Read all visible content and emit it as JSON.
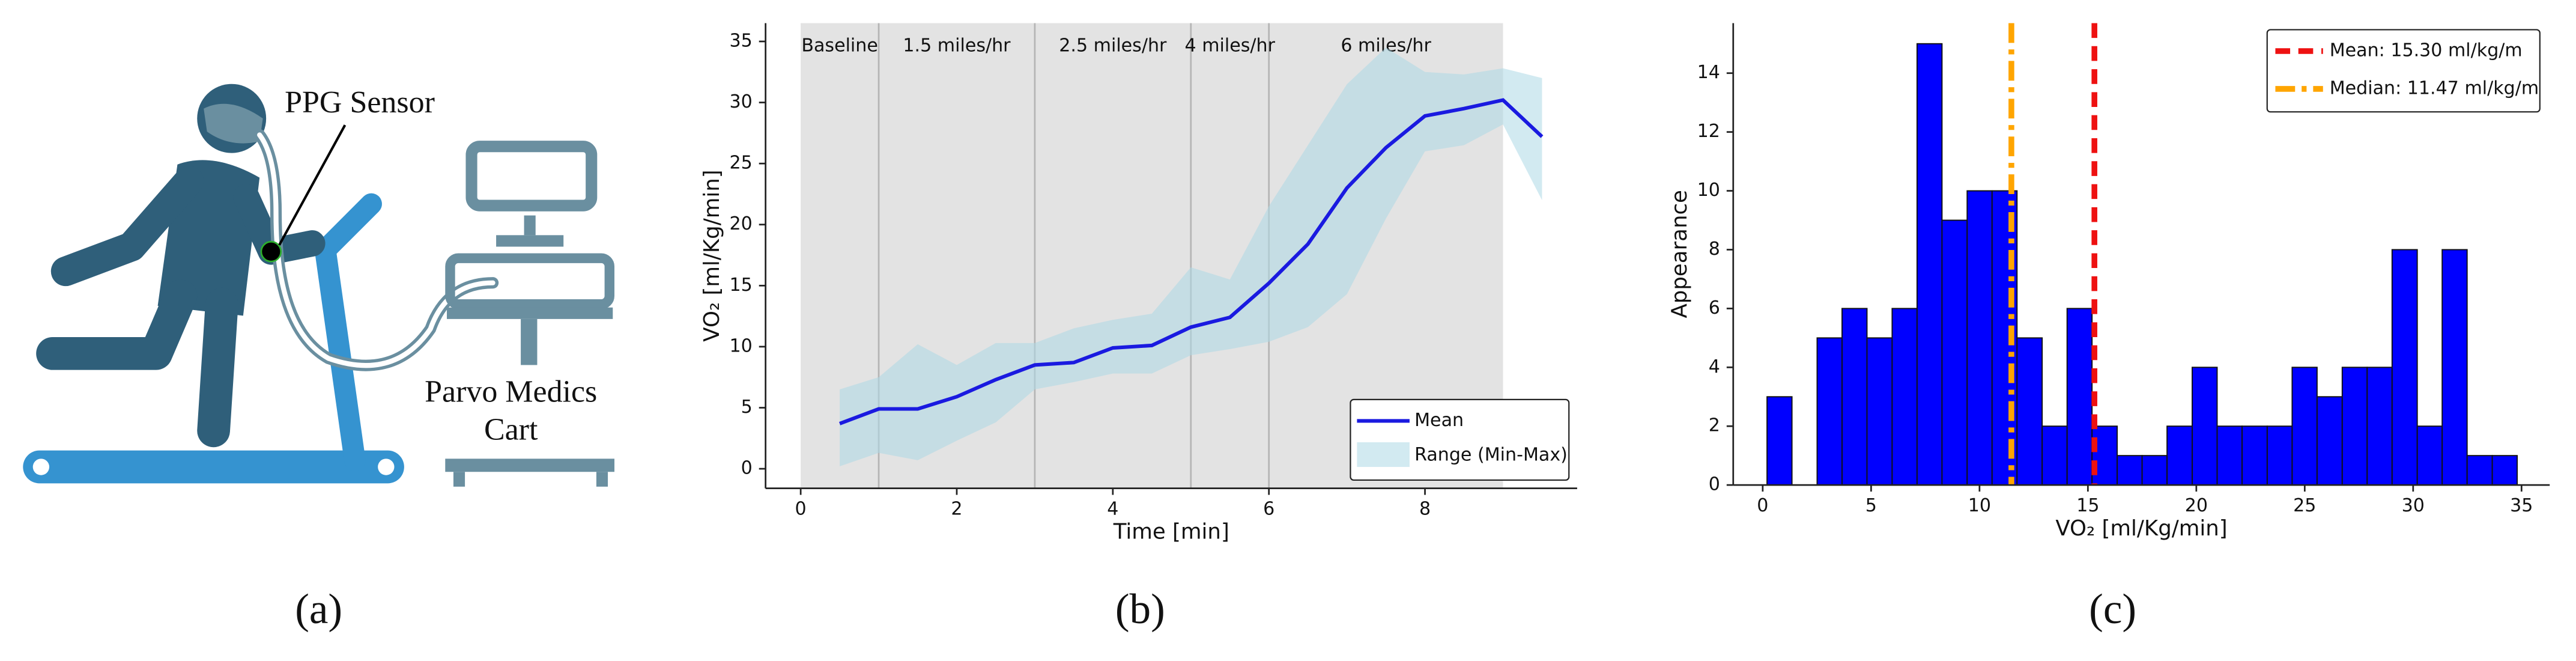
{
  "illustration": {
    "sensor_label": "PPG Sensor",
    "cart_label": [
      "Parvo Medics",
      "Cart"
    ]
  },
  "captions": [
    "(a)",
    "(b)",
    "(c)"
  ],
  "chart_data": [
    {
      "type": "line",
      "x_label": "Time [min]",
      "y_label": "VO₂ [ml/Kg/min]",
      "xlim": [
        -0.45,
        9.95
      ],
      "xticks": [
        0,
        2,
        4,
        6,
        8
      ],
      "ylim": [
        -1.6,
        36.5
      ],
      "yticks": [
        0,
        5,
        10,
        15,
        20,
        25,
        30,
        35
      ],
      "x": [
        0.5,
        1,
        1.5,
        2,
        2.5,
        3,
        3.5,
        4,
        4.5,
        5,
        5.5,
        6,
        6.5,
        7,
        7.5,
        8,
        8.5,
        9,
        9.5
      ],
      "series": [
        {
          "name": "Mean",
          "color": "#1a1ae0",
          "values": [
            3.7,
            4.9,
            4.9,
            5.9,
            7.3,
            8.5,
            8.7,
            9.9,
            10.1,
            11.6,
            12.4,
            15.2,
            18.4,
            23,
            26.3,
            28.9,
            29.5,
            30.2,
            27.2
          ]
        }
      ],
      "bands": [
        {
          "name": "Range (Min-Max)",
          "color": "#add8e6",
          "lower": [
            0.2,
            1.3,
            0.7,
            2.3,
            3.8,
            6.5,
            7.1,
            7.8,
            7.8,
            9.3,
            9.8,
            10.4,
            11.6,
            14.3,
            20.5,
            26,
            26.5,
            28.2,
            22
          ],
          "upper": [
            6.5,
            7.5,
            10.2,
            8.5,
            10.3,
            10.3,
            11.5,
            12.2,
            12.7,
            16.5,
            15.5,
            21.5,
            26.5,
            31.5,
            34.5,
            32.5,
            32.3,
            32.8,
            32
          ]
        }
      ],
      "phases": {
        "bounds": [
          0,
          1,
          3,
          5,
          6,
          9
        ],
        "labels": [
          "Baseline",
          "1.5 miles/hr",
          "2.5 miles/hr",
          "4 miles/hr",
          "6 miles/hr"
        ],
        "color": "#e3e3e3"
      },
      "legend": "lower right"
    },
    {
      "type": "histogram",
      "x_label": "VO₂ [ml/Kg/min]",
      "y_label": "Appearance",
      "xlim": [
        -1.36,
        36.3
      ],
      "xticks": [
        0,
        5,
        10,
        15,
        20,
        25,
        30,
        35
      ],
      "ylim": [
        0,
        15.7
      ],
      "yticks": [
        0,
        2,
        4,
        6,
        8,
        10,
        12,
        14
      ],
      "color": "#0000ff",
      "bins": [
        0.2,
        1.35,
        2.51,
        3.66,
        4.81,
        5.97,
        7.12,
        8.27,
        9.43,
        10.58,
        11.73,
        12.89,
        14.04,
        15.19,
        16.35,
        17.5,
        18.65,
        19.81,
        20.96,
        22.11,
        23.27,
        24.42,
        25.57,
        26.73,
        27.88,
        29.03,
        30.19,
        31.34,
        32.49,
        33.65,
        34.8
      ],
      "counts": [
        3,
        0,
        5,
        6,
        5,
        6,
        15,
        9,
        10,
        10,
        5,
        2,
        6,
        2,
        1,
        1,
        2,
        4,
        2,
        2,
        2,
        4,
        3,
        4,
        4,
        8,
        2,
        8,
        1,
        1
      ],
      "vlines": [
        {
          "name": "Mean: 15.30 ml/kg/m",
          "value": 15.3,
          "color": "#ee1111",
          "style": "dashed"
        },
        {
          "name": "Median: 11.47 ml/kg/m",
          "value": 11.47,
          "color": "#ffa500",
          "style": "dashdot"
        }
      ],
      "legend": "upper right"
    }
  ]
}
